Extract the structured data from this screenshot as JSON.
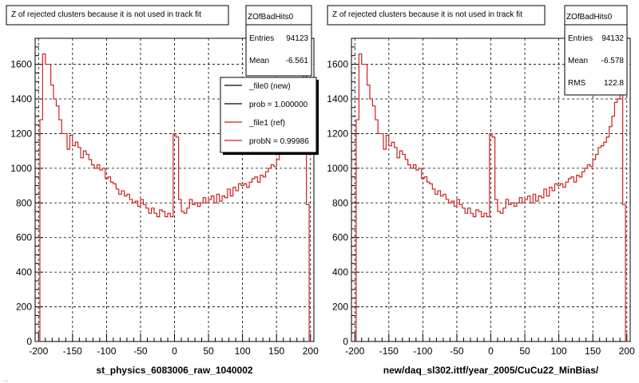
{
  "colors": {
    "ref_line": "#cc2222",
    "frame": "#000000",
    "grid": "#000000",
    "background": "#ffffff",
    "legend_shadow": "#000000"
  },
  "footer_note": "...",
  "chart_data": [
    {
      "type": "line",
      "title": "Z of rejected clusters  because it is not used in track fit",
      "xlabel": "st_physics_6083006_raw_1040002",
      "ylabel": "",
      "xlim": [
        -205,
        205
      ],
      "ylim": [
        0,
        1750
      ],
      "grid": true,
      "x_ticks": [
        -200,
        -150,
        -100,
        -50,
        0,
        50,
        100,
        150,
        200
      ],
      "y_ticks": [
        0,
        200,
        400,
        600,
        800,
        1000,
        1200,
        1400,
        1600
      ],
      "stats_box": {
        "name": "ZOfBadHits0",
        "rows": [
          {
            "label": "Entries",
            "value": "94123"
          },
          {
            "label": "Mean",
            "value": "-6.561"
          }
        ]
      },
      "legend": {
        "placement": "top-right",
        "entries": [
          {
            "label": "_file0 (new)",
            "color": "#000000"
          },
          {
            "label": "prob = 1.000000",
            "color": "#000000"
          },
          {
            "label": "_file1 (ref)",
            "color": "#cc2222"
          },
          {
            "label": "probN = 0.99986",
            "color": "#cc2222"
          }
        ]
      },
      "series": [
        {
          "x": [
            -200,
            -196,
            -192,
            -188,
            -184,
            -180,
            -176,
            -172,
            -168,
            -164,
            -160,
            -156,
            -152,
            -148,
            -144,
            -140,
            -136,
            -132,
            -128,
            -124,
            -120,
            -116,
            -112,
            -108,
            -104,
            -100,
            -96,
            -92,
            -88,
            -84,
            -80,
            -76,
            -72,
            -68,
            -64,
            -60,
            -56,
            -52,
            -48,
            -44,
            -40,
            -36,
            -32,
            -28,
            -24,
            -20,
            -16,
            -12,
            -8,
            -4,
            0,
            4,
            8,
            12,
            16,
            20,
            24,
            28,
            32,
            36,
            40,
            44,
            48,
            52,
            56,
            60,
            64,
            68,
            72,
            76,
            80,
            84,
            88,
            92,
            96,
            100,
            104,
            108,
            112,
            116,
            120,
            124,
            128,
            132,
            136,
            140,
            144,
            148,
            152,
            156,
            160,
            164,
            168,
            172,
            176,
            180,
            184,
            188,
            192,
            196,
            200
          ],
          "values": [
            0,
            1280,
            1660,
            1600,
            1600,
            1480,
            1400,
            1360,
            1280,
            1200,
            1200,
            1110,
            1190,
            1130,
            1150,
            1120,
            1060,
            1100,
            1080,
            1050,
            1020,
            1000,
            1020,
            990,
            1000,
            940,
            950,
            920,
            910,
            880,
            850,
            870,
            840,
            850,
            820,
            800,
            810,
            780,
            820,
            790,
            770,
            740,
            770,
            740,
            720,
            760,
            750,
            720,
            740,
            720,
            1200,
            1180,
            820,
            750,
            740,
            770,
            820,
            790,
            800,
            780,
            800,
            830,
            800,
            820,
            840,
            800,
            850,
            810,
            840,
            830,
            880,
            840,
            890,
            870,
            910,
            900,
            910,
            890,
            920,
            940,
            950,
            920,
            960,
            950,
            980,
            1000,
            1020,
            1010,
            1050,
            1080,
            1120,
            1130,
            1150,
            1180,
            1240,
            1300,
            1380,
            1400,
            1660,
            790,
            0
          ]
        }
      ]
    },
    {
      "type": "line",
      "title": "Z of rejected clusters  because it is not used in track fit",
      "xlabel": "new/daq_sl302.ittf/year_2005/CuCu22_MinBias/",
      "ylabel": "",
      "xlim": [
        -205,
        205
      ],
      "ylim": [
        0,
        1750
      ],
      "grid": true,
      "x_ticks": [
        -200,
        -150,
        -100,
        -50,
        0,
        50,
        100,
        150,
        200
      ],
      "y_ticks": [
        0,
        200,
        400,
        600,
        800,
        1000,
        1200,
        1400,
        1600
      ],
      "stats_box": {
        "name": "ZOfBadHits0",
        "rows": [
          {
            "label": "Entries",
            "value": "94132"
          },
          {
            "label": "Mean",
            "value": "-6.578"
          },
          {
            "label": "RMS",
            "value": "122.8"
          }
        ]
      },
      "series": [
        {
          "x": [
            -200,
            -196,
            -192,
            -188,
            -184,
            -180,
            -176,
            -172,
            -168,
            -164,
            -160,
            -156,
            -152,
            -148,
            -144,
            -140,
            -136,
            -132,
            -128,
            -124,
            -120,
            -116,
            -112,
            -108,
            -104,
            -100,
            -96,
            -92,
            -88,
            -84,
            -80,
            -76,
            -72,
            -68,
            -64,
            -60,
            -56,
            -52,
            -48,
            -44,
            -40,
            -36,
            -32,
            -28,
            -24,
            -20,
            -16,
            -12,
            -8,
            -4,
            0,
            4,
            8,
            12,
            16,
            20,
            24,
            28,
            32,
            36,
            40,
            44,
            48,
            52,
            56,
            60,
            64,
            68,
            72,
            76,
            80,
            84,
            88,
            92,
            96,
            100,
            104,
            108,
            112,
            116,
            120,
            124,
            128,
            132,
            136,
            140,
            144,
            148,
            152,
            156,
            160,
            164,
            168,
            172,
            176,
            180,
            184,
            188,
            192,
            196,
            200
          ],
          "values": [
            0,
            1280,
            1660,
            1600,
            1600,
            1480,
            1400,
            1360,
            1280,
            1200,
            1200,
            1110,
            1190,
            1130,
            1150,
            1120,
            1060,
            1100,
            1080,
            1050,
            1020,
            1000,
            1020,
            990,
            1000,
            940,
            950,
            920,
            910,
            880,
            850,
            870,
            840,
            850,
            820,
            800,
            810,
            780,
            820,
            790,
            770,
            740,
            770,
            740,
            720,
            760,
            750,
            720,
            740,
            720,
            1200,
            1180,
            820,
            750,
            740,
            770,
            820,
            790,
            800,
            780,
            800,
            830,
            800,
            820,
            840,
            800,
            850,
            810,
            840,
            830,
            880,
            840,
            890,
            870,
            910,
            900,
            910,
            890,
            920,
            940,
            950,
            920,
            960,
            950,
            980,
            1000,
            1020,
            1010,
            1050,
            1080,
            1120,
            1130,
            1150,
            1180,
            1240,
            1300,
            1380,
            1400,
            1660,
            790,
            0
          ]
        }
      ]
    }
  ]
}
